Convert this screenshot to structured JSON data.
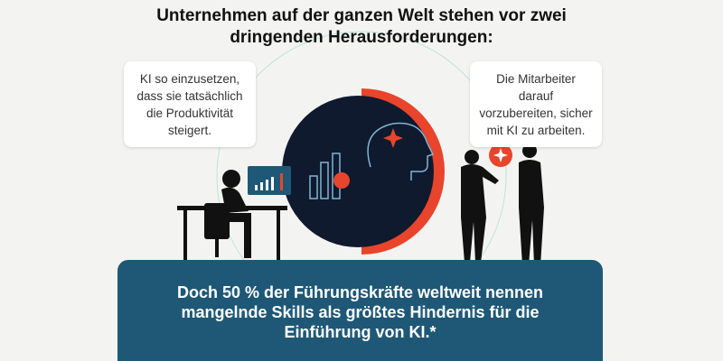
{
  "title": {
    "lines": [
      "Unternehmen auf der ganzen Welt stehen vor zwei",
      "dringenden Herausforderungen:"
    ]
  },
  "bubble_left": {
    "lines": [
      "KI so einzusetzen,",
      "dass sie tatsächlich",
      "die Produktivität",
      "steigert."
    ]
  },
  "bubble_right": {
    "lines": [
      "Die Mitarbeiter",
      "darauf",
      "vorzubereiten, sicher",
      "mit KI zu arbeiten."
    ]
  },
  "banner": {
    "lines": [
      "Doch 50 % der Führungskräfte weltweit nennen",
      "mangelnde Skills als größtes Hindernis für die",
      "Einführung von KI.*"
    ]
  }
}
